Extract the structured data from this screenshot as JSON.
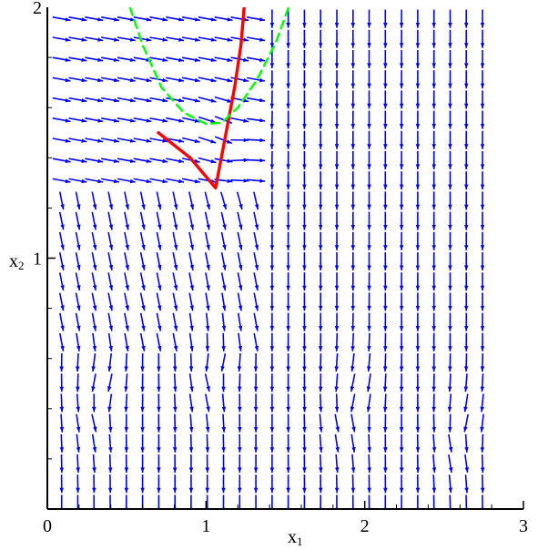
{
  "chart_data": {
    "type": "vector-field",
    "xlabel": "x",
    "xlabel_subscript": "1",
    "ylabel": "x",
    "ylabel_subscript": "2",
    "xlim": [
      0,
      3
    ],
    "ylim": [
      0,
      2
    ],
    "x_ticks": [
      "0",
      "1",
      "2",
      "3"
    ],
    "y_ticks": [
      "1",
      "2"
    ],
    "grid": false,
    "arrow_color": "#0000ff",
    "arrow_grid": {
      "x_start": 0.09,
      "x_step": 0.102,
      "y_start": 0.02,
      "y_step": 0.0806,
      "columns": 27,
      "rows": 25
    },
    "curves": [
      {
        "style": "solid",
        "color": "#ff0000",
        "points": [
          [
            0.7,
            1.5
          ],
          [
            0.9,
            1.4
          ],
          [
            1.06,
            1.28
          ],
          [
            1.12,
            1.48
          ],
          [
            1.18,
            1.68
          ],
          [
            1.22,
            1.85
          ],
          [
            1.24,
            2.0
          ]
        ]
      },
      {
        "style": "dashed",
        "color": "#00ff00",
        "points": [
          [
            0.52,
            2.0
          ],
          [
            0.6,
            1.85
          ],
          [
            0.72,
            1.68
          ],
          [
            0.86,
            1.58
          ],
          [
            1.0,
            1.535
          ],
          [
            1.1,
            1.54
          ],
          [
            1.2,
            1.6
          ],
          [
            1.32,
            1.71
          ],
          [
            1.44,
            1.86
          ],
          [
            1.52,
            2.0
          ]
        ]
      }
    ]
  }
}
